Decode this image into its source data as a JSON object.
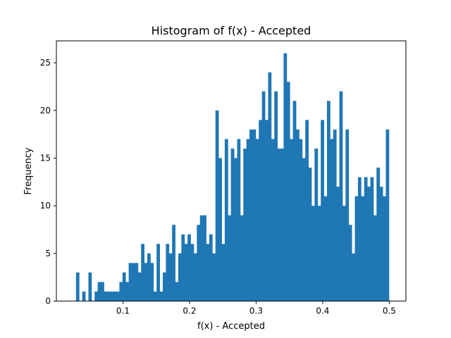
{
  "chart_data": {
    "type": "bar",
    "title": "Histogram of f(x) - Accepted",
    "xlabel": "f(x) - Accepted",
    "ylabel": "Frequency",
    "xlim": [
      0.0,
      0.525
    ],
    "ylim": [
      0,
      27.3
    ],
    "x_ticks": [
      0.1,
      0.2,
      0.3,
      0.4,
      0.5
    ],
    "x_tick_labels": [
      "0.1",
      "0.2",
      "0.3",
      "0.4",
      "0.5"
    ],
    "y_ticks": [
      0,
      5,
      10,
      15,
      20,
      25
    ],
    "y_tick_labels": [
      "0",
      "5",
      "10",
      "15",
      "20",
      "25"
    ],
    "bin_start": 0.0295,
    "bin_end": 0.4995,
    "color": "#1f77b4",
    "grid": false,
    "values": [
      3,
      0,
      1,
      0,
      3,
      0,
      1,
      2,
      2,
      1,
      1,
      1,
      1,
      1,
      2,
      3,
      2,
      4,
      4,
      4,
      3,
      6,
      4,
      5,
      4,
      1,
      6,
      1,
      3,
      6,
      5,
      8,
      2,
      5,
      7,
      6,
      7,
      6,
      5,
      8,
      9,
      9,
      6,
      7,
      5,
      20,
      15,
      6,
      17,
      9,
      16,
      15,
      17,
      9,
      16,
      17,
      18,
      18,
      17,
      19,
      22,
      19,
      24,
      17,
      22,
      16,
      16,
      26,
      23,
      17,
      21,
      18,
      17,
      15,
      19,
      14,
      10,
      16,
      10,
      19,
      11,
      21,
      17,
      18,
      12,
      22,
      10,
      18,
      8,
      5,
      11,
      13,
      11,
      13,
      12,
      13,
      9,
      14,
      12,
      11,
      18
    ]
  }
}
